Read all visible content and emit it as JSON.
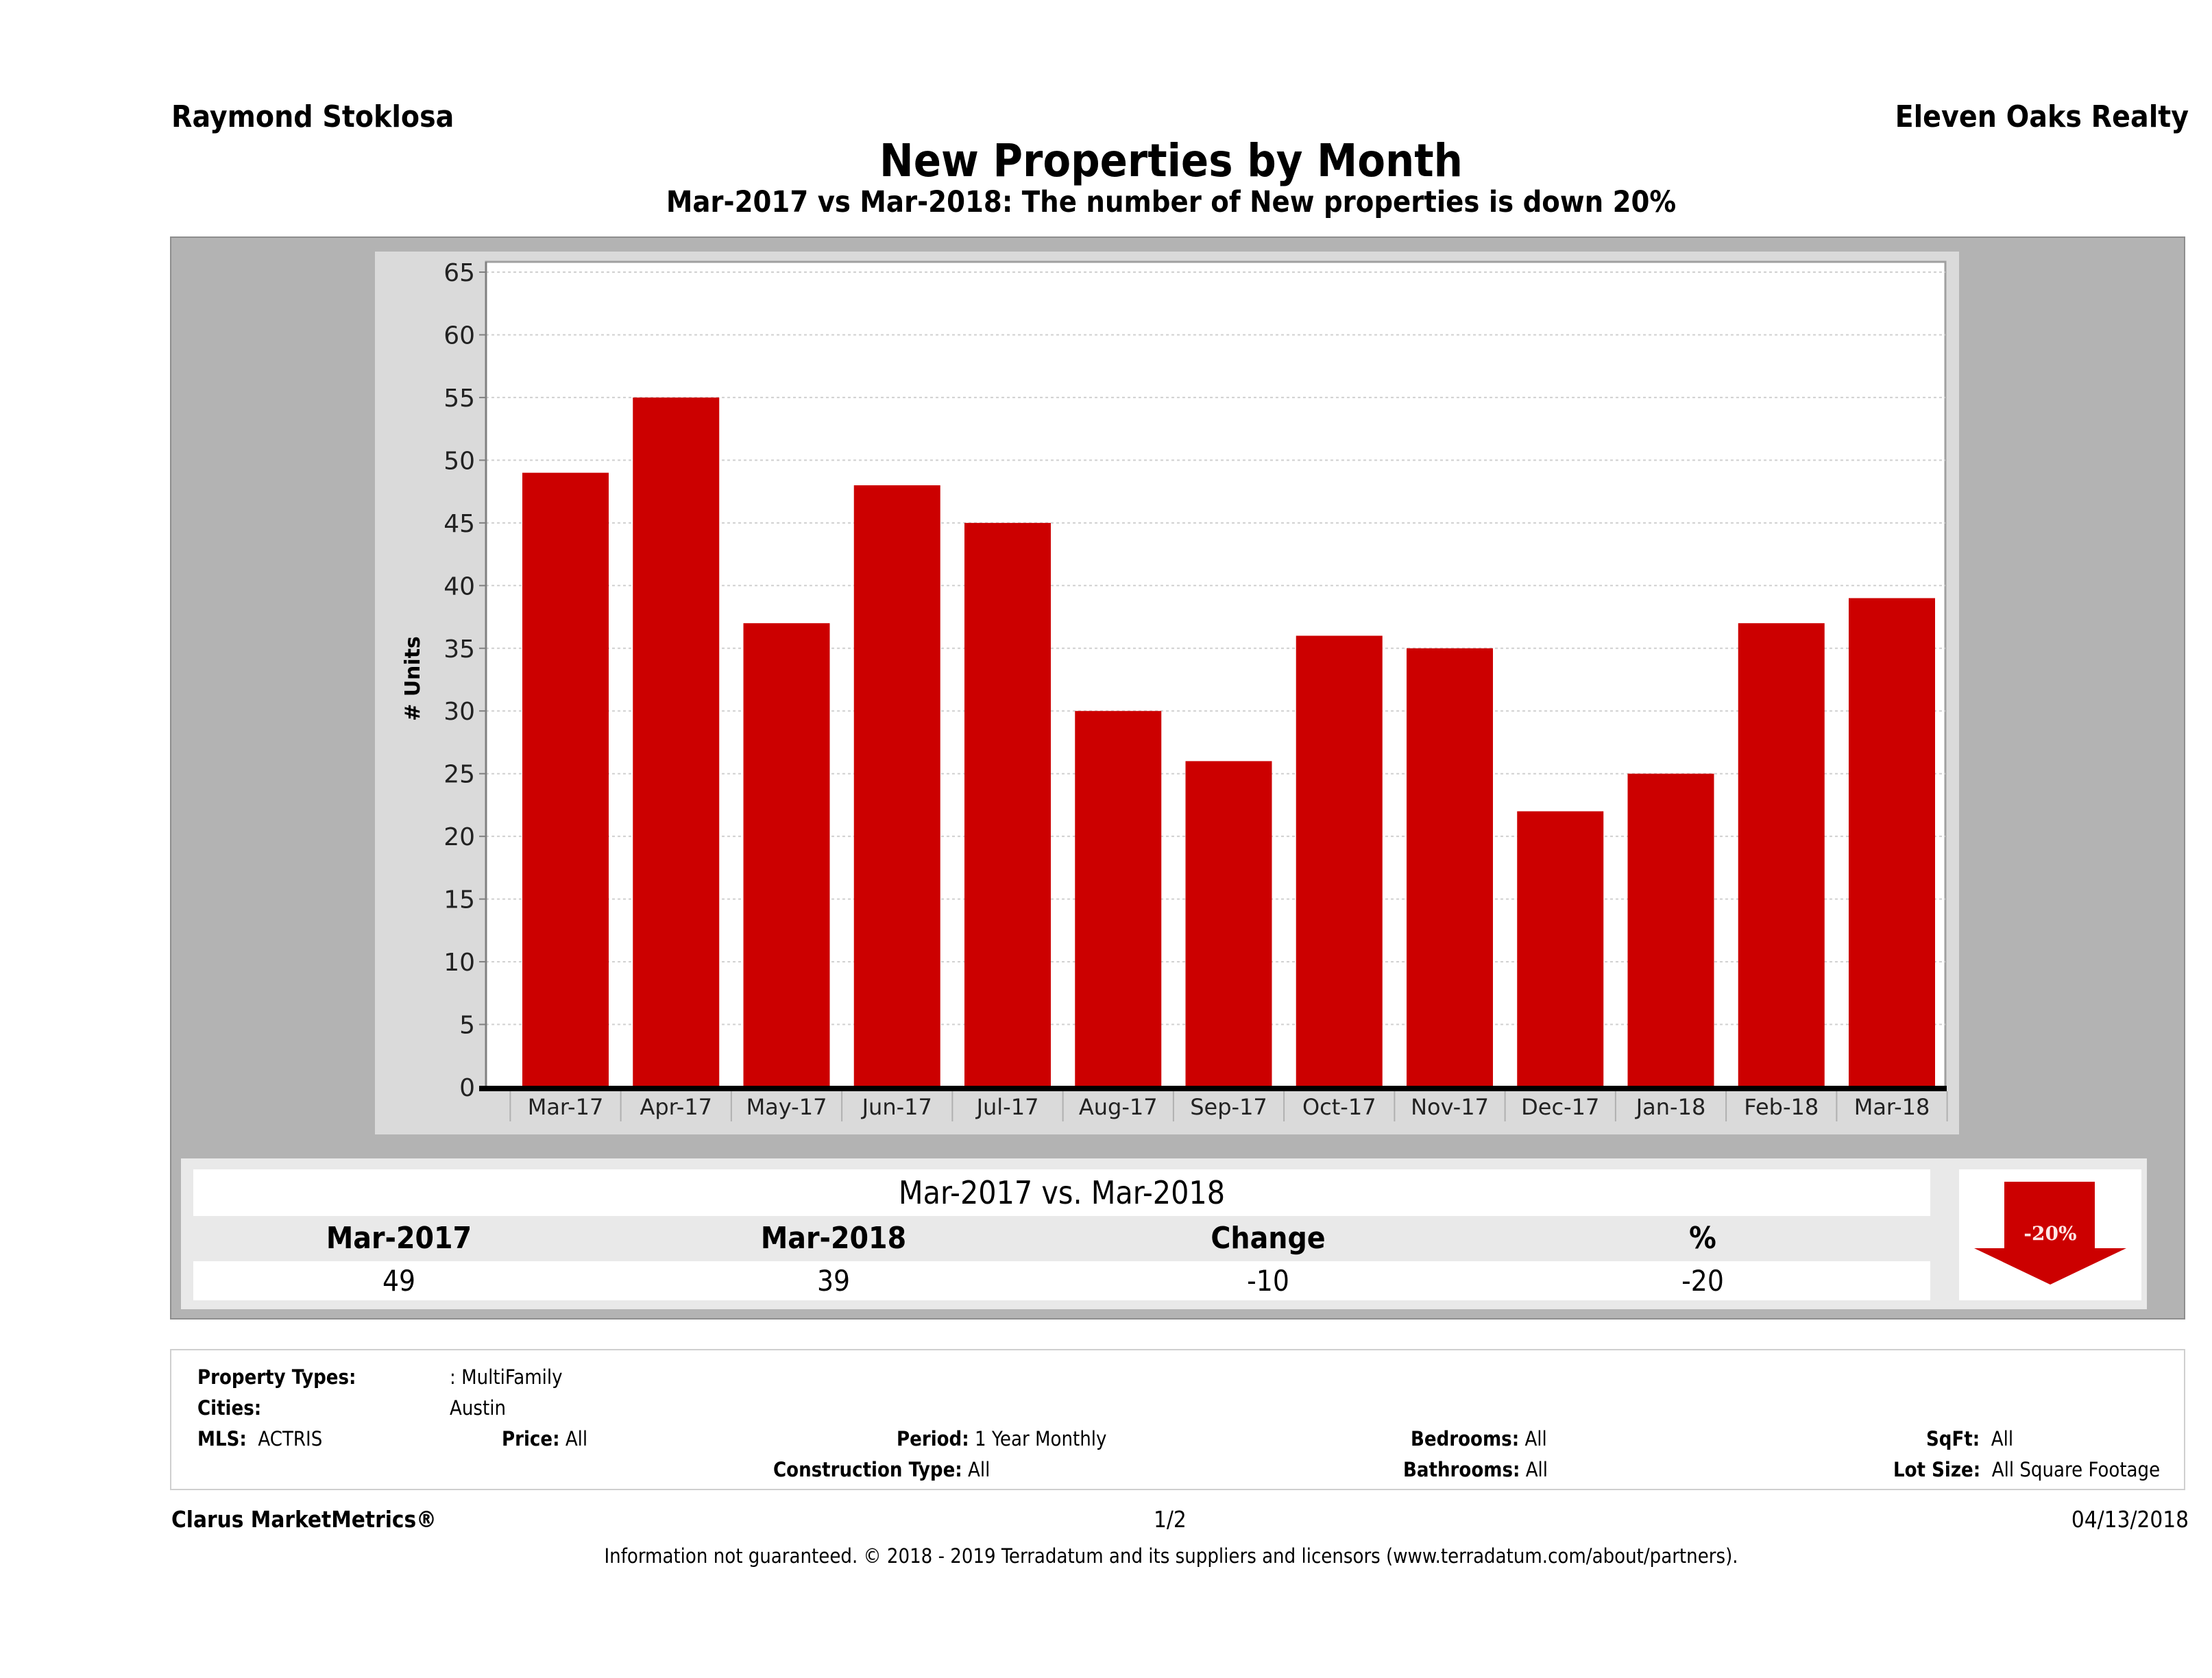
{
  "header": {
    "agent_name": "Raymond Stoklosa",
    "brokerage": "Eleven Oaks Realty",
    "title": "New Properties by Month",
    "subtitle": "Mar-2017 vs Mar-2018: The number of New  properties is down 20%"
  },
  "chart_data": {
    "type": "bar",
    "title": "New Properties by Month",
    "xlabel": "",
    "ylabel": "# Units",
    "categories": [
      "Mar-17",
      "Apr-17",
      "May-17",
      "Jun-17",
      "Jul-17",
      "Aug-17",
      "Sep-17",
      "Oct-17",
      "Nov-17",
      "Dec-17",
      "Jan-18",
      "Feb-18",
      "Mar-18"
    ],
    "values": [
      49,
      55,
      37,
      48,
      45,
      30,
      26,
      36,
      35,
      22,
      25,
      37,
      39
    ],
    "ylim": [
      0,
      65
    ],
    "yticks": [
      0,
      5,
      10,
      15,
      20,
      25,
      30,
      35,
      40,
      45,
      50,
      55,
      60,
      65
    ],
    "grid": true,
    "legend": "none",
    "bar_color": "#cc0000"
  },
  "summary": {
    "title": "Mar-2017 vs. Mar-2018",
    "headers": [
      "Mar-2017",
      "Mar-2018",
      "Change",
      "%"
    ],
    "values": [
      "49",
      "39",
      "-10",
      "-20"
    ],
    "badge_label": "-20%",
    "badge_direction": "down",
    "badge_color": "#cc0000"
  },
  "filters": {
    "property_types_label": "Property Types:",
    "property_types_value": ": MultiFamily",
    "cities_label": "Cities:",
    "cities_value": "Austin",
    "mls_label": "MLS:",
    "mls_value": "ACTRIS",
    "price_label": "Price:",
    "price_value": "All",
    "period_label": "Period:",
    "period_value": "1 Year Monthly",
    "construction_label": "Construction Type:",
    "construction_value": "All",
    "bedrooms_label": "Bedrooms:",
    "bedrooms_value": "All",
    "bathrooms_label": "Bathrooms:",
    "bathrooms_value": "All",
    "sqft_label": "SqFt:",
    "sqft_value": "All",
    "lotsize_label": "Lot Size:",
    "lotsize_value": "All Square Footage"
  },
  "footer": {
    "product": "Clarus MarketMetrics®",
    "page": "1/2",
    "date": "04/13/2018",
    "disclaimer": "Information not guaranteed. © 2018 - 2019 Terradatum and its suppliers and licensors (www.terradatum.com/about/partners)."
  }
}
